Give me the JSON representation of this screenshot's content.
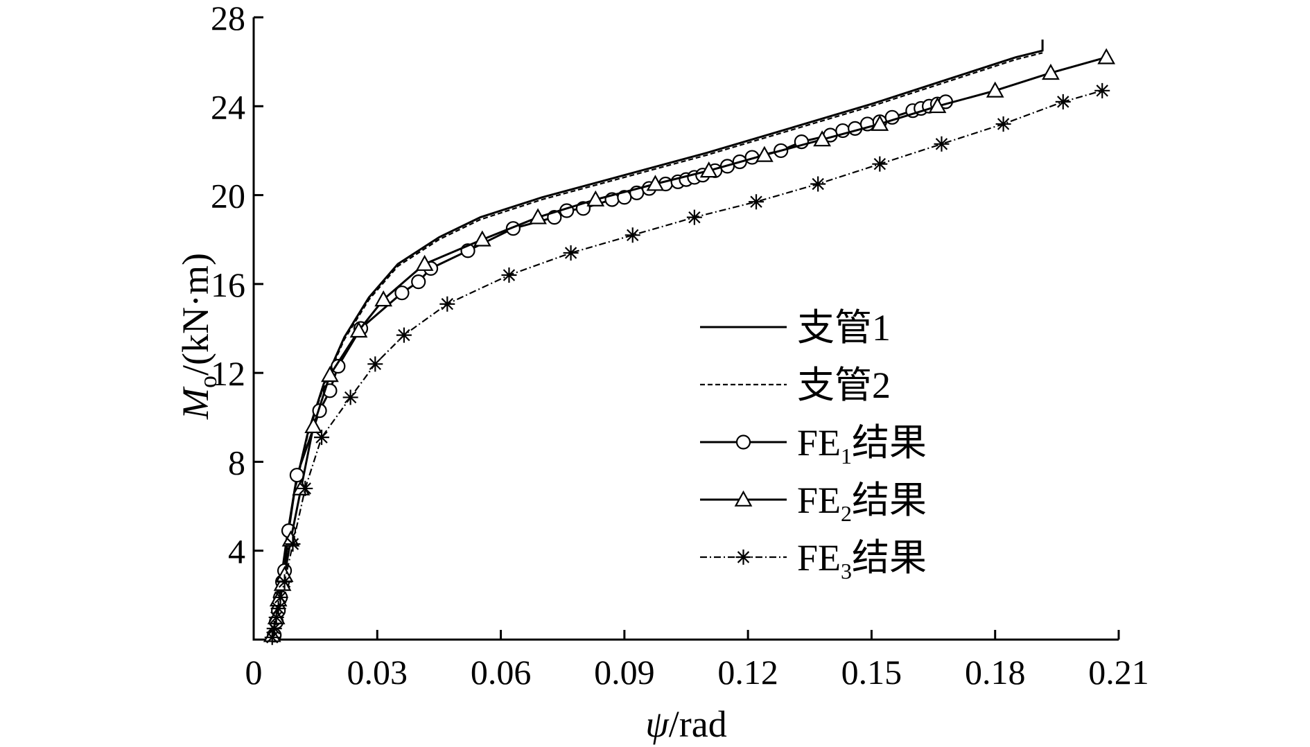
{
  "chart_data": {
    "type": "line",
    "title": "",
    "xlabel": {
      "italic": "ψ",
      "rest": "/rad"
    },
    "ylabel": {
      "italic": "M",
      "sub": "o",
      "rest": "/(kN·m)"
    },
    "xlim": [
      0,
      0.21
    ],
    "ylim": [
      0,
      28
    ],
    "xticks": [
      "0",
      "0.03",
      "0.06",
      "0.09",
      "0.12",
      "0.15",
      "0.18",
      "0.21"
    ],
    "yticks": [
      "4",
      "8",
      "12",
      "16",
      "20",
      "24",
      "28"
    ],
    "xtick_values": [
      0,
      0.03,
      0.06,
      0.09,
      0.12,
      0.15,
      0.18,
      0.21
    ],
    "ytick_values": [
      4,
      8,
      12,
      16,
      20,
      24,
      28
    ],
    "grid": false,
    "legend_position": "center-right",
    "series": [
      {
        "name": "支管1",
        "marker": "none",
        "dash": "solid",
        "x": [
          0.005,
          0.0065,
          0.008,
          0.01,
          0.013,
          0.017,
          0.022,
          0.028,
          0.035,
          0.045,
          0.055,
          0.07,
          0.09,
          0.11,
          0.13,
          0.15,
          0.17,
          0.185,
          0.1915,
          0.1915
        ],
        "y": [
          0.5,
          2.5,
          4.5,
          6.8,
          9.2,
          11.5,
          13.6,
          15.4,
          16.9,
          18.1,
          19.0,
          19.9,
          20.9,
          21.9,
          23.0,
          24.1,
          25.3,
          26.2,
          26.5,
          27.0
        ]
      },
      {
        "name": "支管2",
        "marker": "none",
        "dash": "dashed",
        "x": [
          0.005,
          0.0065,
          0.008,
          0.01,
          0.013,
          0.017,
          0.022,
          0.028,
          0.035,
          0.045,
          0.055,
          0.07,
          0.09,
          0.11,
          0.13,
          0.15,
          0.17,
          0.185,
          0.1915
        ],
        "y": [
          0.5,
          2.5,
          4.4,
          6.7,
          9.1,
          11.4,
          13.5,
          15.3,
          16.8,
          18.0,
          18.9,
          19.8,
          20.8,
          21.8,
          22.9,
          24.0,
          25.2,
          26.1,
          26.4
        ]
      },
      {
        "name": "FE",
        "name_sub": "1",
        "name_suffix": "结果",
        "marker": "circle",
        "dash": "solid",
        "x": [
          0.005,
          0.0055,
          0.006,
          0.0065,
          0.007,
          0.0075,
          0.0085,
          0.0105,
          0.016,
          0.0185,
          0.0205,
          0.026,
          0.036,
          0.04,
          0.043,
          0.052,
          0.063,
          0.073,
          0.076,
          0.08,
          0.087,
          0.09,
          0.093,
          0.096,
          0.1,
          0.103,
          0.105,
          0.107,
          0.109,
          0.112,
          0.115,
          0.118,
          0.121,
          0.128,
          0.133,
          0.14,
          0.143,
          0.146,
          0.149,
          0.152,
          0.155,
          0.16,
          0.162,
          0.164,
          0.166,
          0.168
        ],
        "y": [
          0.2,
          0.8,
          1.3,
          1.9,
          2.6,
          3.1,
          4.9,
          7.4,
          10.3,
          11.2,
          12.3,
          14.0,
          15.6,
          16.1,
          16.7,
          17.5,
          18.5,
          19.0,
          19.3,
          19.4,
          19.8,
          19.9,
          20.1,
          20.3,
          20.5,
          20.6,
          20.7,
          20.8,
          20.9,
          21.1,
          21.3,
          21.5,
          21.7,
          22.0,
          22.4,
          22.7,
          22.9,
          23.0,
          23.2,
          23.3,
          23.5,
          23.8,
          23.9,
          24.0,
          24.1,
          24.2
        ]
      },
      {
        "name": "FE",
        "name_sub": "2",
        "name_suffix": "结果",
        "marker": "triangle",
        "dash": "solid",
        "x": [
          0.0045,
          0.0055,
          0.006,
          0.007,
          0.0075,
          0.009,
          0.0115,
          0.0145,
          0.0185,
          0.0255,
          0.0315,
          0.0415,
          0.0555,
          0.069,
          0.083,
          0.0975,
          0.1105,
          0.124,
          0.138,
          0.152,
          0.166,
          0.18,
          0.1935,
          0.207
        ],
        "y": [
          0.2,
          1.0,
          1.8,
          2.5,
          2.9,
          4.5,
          6.8,
          9.6,
          11.9,
          13.9,
          15.3,
          16.9,
          18.0,
          19.0,
          19.8,
          20.5,
          21.1,
          21.8,
          22.5,
          23.2,
          24.0,
          24.7,
          25.5,
          26.2
        ]
      },
      {
        "name": "FE",
        "name_sub": "3",
        "name_suffix": "结果",
        "marker": "asterisk",
        "dash": "dashdot",
        "x": [
          0.0045,
          0.005,
          0.0055,
          0.006,
          0.0065,
          0.0075,
          0.0095,
          0.0125,
          0.0165,
          0.0235,
          0.0295,
          0.0365,
          0.047,
          0.062,
          0.077,
          0.092,
          0.107,
          0.122,
          0.137,
          0.152,
          0.167,
          0.182,
          0.1965,
          0.206
        ],
        "y": [
          0.1,
          0.5,
          1.0,
          1.4,
          1.9,
          2.6,
          4.3,
          6.8,
          9.1,
          10.9,
          12.4,
          13.7,
          15.1,
          16.4,
          17.4,
          18.2,
          19.0,
          19.7,
          20.5,
          21.4,
          22.3,
          23.2,
          24.2,
          24.7
        ]
      }
    ]
  }
}
